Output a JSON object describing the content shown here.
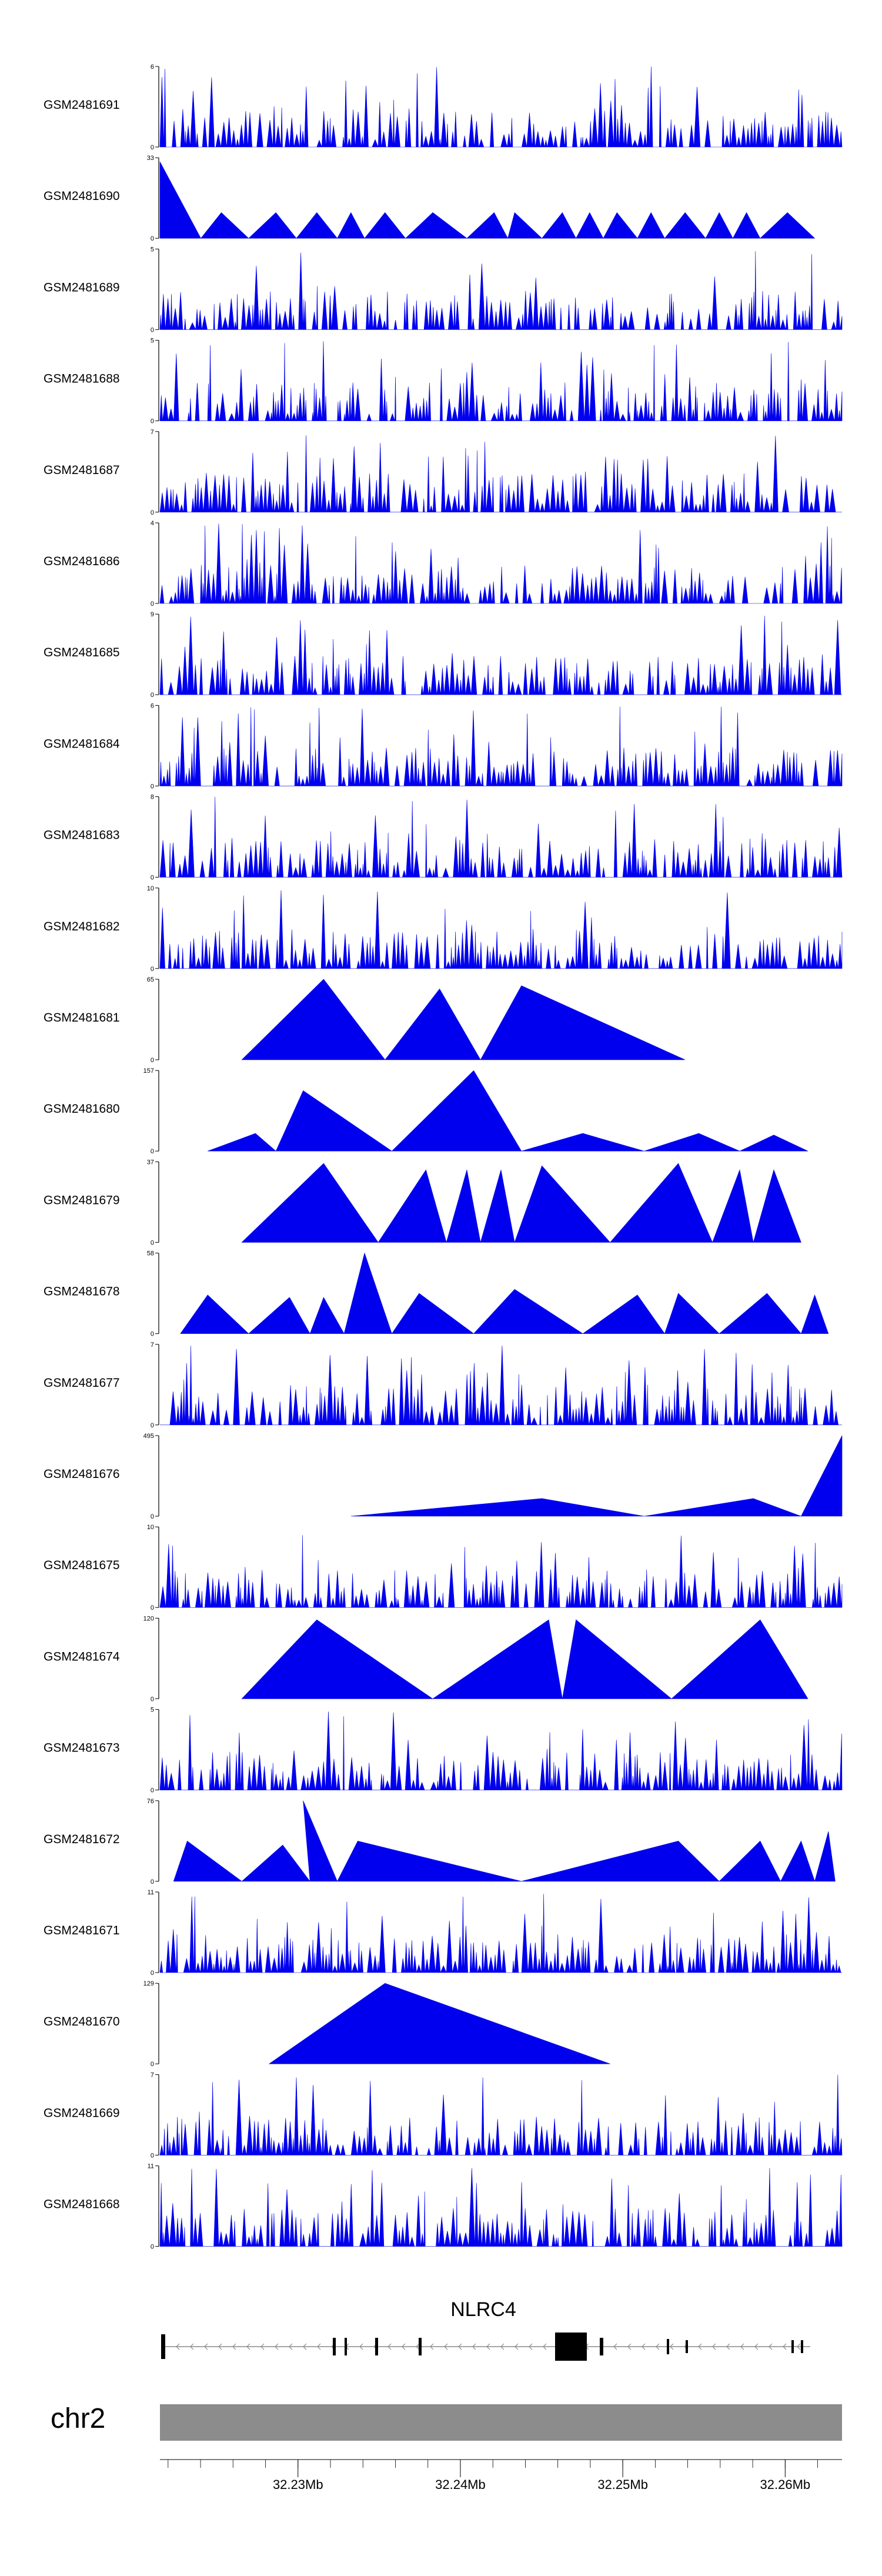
{
  "chart_data": {
    "type": "area",
    "tracks": [
      {
        "name": "GSM2481691",
        "ymax": "6"
      },
      {
        "name": "GSM2481690",
        "ymax": "33"
      },
      {
        "name": "GSM2481689",
        "ymax": "5"
      },
      {
        "name": "GSM2481688",
        "ymax": "5"
      },
      {
        "name": "GSM2481687",
        "ymax": "7"
      },
      {
        "name": "GSM2481686",
        "ymax": "4"
      },
      {
        "name": "GSM2481685",
        "ymax": "9"
      },
      {
        "name": "GSM2481684",
        "ymax": "6"
      },
      {
        "name": "GSM2481683",
        "ymax": "8"
      },
      {
        "name": "GSM2481682",
        "ymax": "10"
      },
      {
        "name": "GSM2481681",
        "ymax": "65"
      },
      {
        "name": "GSM2481680",
        "ymax": "157"
      },
      {
        "name": "GSM2481679",
        "ymax": "37"
      },
      {
        "name": "GSM2481678",
        "ymax": "58"
      },
      {
        "name": "GSM2481677",
        "ymax": "7"
      },
      {
        "name": "GSM2481676",
        "ymax": "495"
      },
      {
        "name": "GSM2481675",
        "ymax": "10"
      },
      {
        "name": "GSM2481674",
        "ymax": "120"
      },
      {
        "name": "GSM2481673",
        "ymax": "5"
      },
      {
        "name": "GSM2481672",
        "ymax": "76"
      },
      {
        "name": "GSM2481671",
        "ymax": "11"
      },
      {
        "name": "GSM2481670",
        "ymax": "129"
      },
      {
        "name": "GSM2481669",
        "ymax": "7"
      },
      {
        "name": "GSM2481668",
        "ymax": "11"
      }
    ],
    "y_min_label": "0",
    "gene": {
      "name": "NLRC4"
    },
    "chromosome": "chr2",
    "xaxis": {
      "range_mb": [
        32.2215,
        32.2635
      ],
      "ticks": [
        {
          "value": 32.23,
          "label": "32.23Mb"
        },
        {
          "value": 32.24,
          "label": "32.24Mb"
        },
        {
          "value": 32.25,
          "label": "32.25Mb"
        },
        {
          "value": 32.26,
          "label": "32.26Mb"
        }
      ]
    },
    "colors": {
      "signal": "#0000ee",
      "gene": "#000000",
      "ideogram": "#8c8c8c",
      "axis": "#000000"
    }
  }
}
